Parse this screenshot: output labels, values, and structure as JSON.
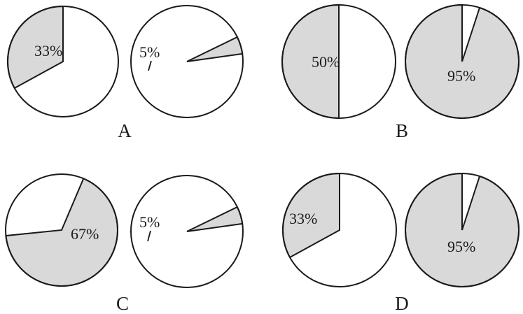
{
  "chart_data": {
    "type": "pie",
    "colors": {
      "shaded": "#d9d9d9",
      "unshaded": "#ffffff",
      "stroke": "#1a1a1a"
    },
    "options": [
      {
        "letter": "A",
        "pies": [
          {
            "label": "33%",
            "value": 33
          },
          {
            "label": "5%",
            "value": 5
          }
        ]
      },
      {
        "letter": "B",
        "pies": [
          {
            "label": "50%",
            "value": 50
          },
          {
            "label": "95%",
            "value": 95
          }
        ]
      },
      {
        "letter": "C",
        "pies": [
          {
            "label": "67%",
            "value": 67
          },
          {
            "label": "5%",
            "value": 5
          }
        ]
      },
      {
        "letter": "D",
        "pies": [
          {
            "label": "33%",
            "value": 33
          },
          {
            "label": "95%",
            "value": 95
          }
        ]
      }
    ]
  }
}
